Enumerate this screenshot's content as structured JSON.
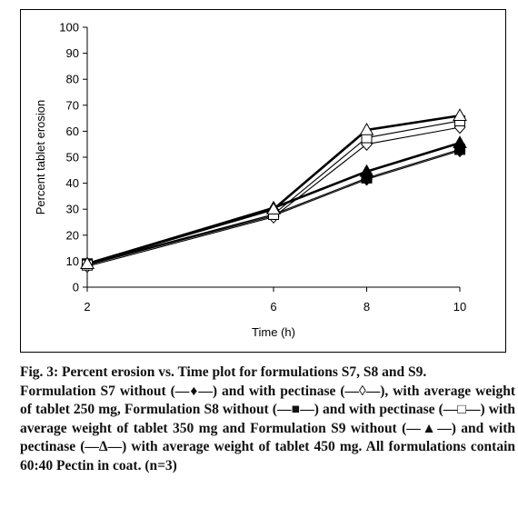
{
  "chart_data": {
    "type": "line",
    "xlabel": "Time (h)",
    "ylabel": "Percent tablet erosion",
    "x": [
      2,
      6,
      8,
      10
    ],
    "xlim": [
      2,
      10
    ],
    "ylim": [
      0,
      100
    ],
    "yticks": [
      "0",
      "10",
      "20",
      "30",
      "40",
      "50",
      "60",
      "70",
      "80",
      "90",
      "100"
    ],
    "xticks": [
      "2",
      "6",
      "8",
      "10"
    ],
    "grid": false,
    "series": [
      {
        "values": [
          8.5,
          27.5,
          41.5,
          52.5
        ],
        "marker": "diamond-filled",
        "weight": "thin"
      },
      {
        "values": [
          8,
          27,
          55,
          61.5
        ],
        "marker": "diamond-open",
        "weight": "thin"
      },
      {
        "values": [
          9,
          28,
          42,
          53
        ],
        "marker": "square-filled",
        "weight": "thin"
      },
      {
        "values": [
          8.5,
          28,
          57.5,
          64
        ],
        "marker": "square-open",
        "weight": "thin"
      },
      {
        "values": [
          9,
          30.5,
          44.5,
          55.5
        ],
        "marker": "triangle-filled",
        "weight": "bold"
      },
      {
        "values": [
          9,
          30,
          60.5,
          66
        ],
        "marker": "triangle-open",
        "weight": "bold"
      }
    ]
  },
  "caption": {
    "title": "Fig. 3: Percent erosion vs. Time plot for formulations S7, S8 and S9.",
    "body": "Formulation S7 without (—♦—) and with pectinase (—◊—), with average weight of tablet 250 mg, Formulation S8 without (—■—) and with pectinase (—□—) with average weight of tablet 350 mg and Formulation S9 without (—▲—) and with pectinase (—Δ—) with average weight of tablet 450 mg. All formulations contain 60:40 Pectin in coat. (n=3)"
  }
}
